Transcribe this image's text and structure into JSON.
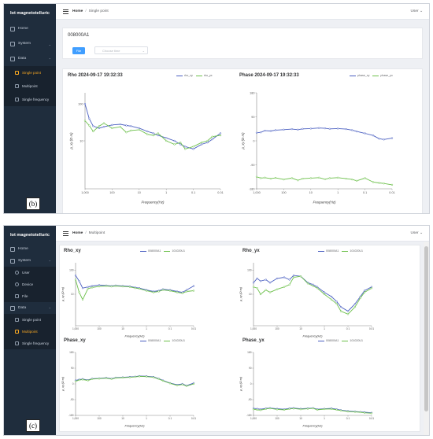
{
  "brand": "Iot magnetotelluric",
  "user_menu": "User",
  "fig_labels": {
    "b": "(b)",
    "c": "(c)"
  },
  "panel_b": {
    "sidebar": {
      "home": "Home",
      "system": "System",
      "data": "Data",
      "single_point": "Single point",
      "multipoint": "Multipoint",
      "single_frequency": "Single frequency"
    },
    "breadcrumb": {
      "home": "Home",
      "current": "Single point"
    },
    "station_id": "008000A1",
    "file_button": "File",
    "time_placeholder": "Choose time",
    "rho_title": "Rho 2024-09-17 19:32:33",
    "phase_title": "Phase 2024-09-17 19:32:33",
    "rho_legend": [
      "rho_xy",
      "rho_yx"
    ],
    "phase_legend": [
      "phase_xy",
      "phase_yx"
    ],
    "rho_ticks_y": [
      "100",
      "10"
    ],
    "phase_ticks_y": [
      "180",
      "90",
      "0",
      "-90",
      "-180"
    ],
    "x_ticks": [
      "1,000",
      "100",
      "10",
      "1",
      "0.1",
      "0.01"
    ],
    "rho_ylabel": "ρ_xy (Ω·m)",
    "phase_ylabel": "ρ_xy (Ω·m)",
    "xlabel": "Frequency(Hz)"
  },
  "panel_c": {
    "sidebar": {
      "home": "Home",
      "system": "System",
      "user": "User",
      "device": "Device",
      "file": "File",
      "data": "Data",
      "single_point": "Single point",
      "multipoint": "Multipoint",
      "single_frequency": "Single frequency"
    },
    "breadcrumb": {
      "home": "Home",
      "current": "Multipoint"
    },
    "titles": [
      "Rho_xy",
      "Rho_yx",
      "Phase_xy",
      "Phase_yx"
    ],
    "legend": [
      "008000A1",
      "101020U1"
    ],
    "x_ticks": [
      "1,000",
      "100",
      "10",
      "1",
      "0.1",
      "0.01"
    ],
    "rho_ticks_y": [
      "100",
      "10"
    ],
    "phase_ticks_y": [
      "180",
      "90",
      "0",
      "-90",
      "-180"
    ],
    "xlabel": "Frequency(Hz)",
    "ylabel": "ρ_xy (Ω·m)"
  },
  "colors": {
    "series_a": "#4a5fc1",
    "series_b": "#6cc04a",
    "accent": "#409eff",
    "sidebar_bg": "#1f2d3d",
    "active": "#f5a623"
  },
  "chart_data": [
    {
      "type": "line",
      "title": "Rho 2024-09-17 19:32:33",
      "xlabel": "Frequency(Hz)",
      "x_scale": "log-reversed",
      "xlim": [
        1000,
        0.01
      ],
      "y_scale": "log",
      "series": [
        {
          "name": "rho_xy",
          "x": [
            1000,
            700,
            500,
            300,
            200,
            100,
            50,
            30,
            20,
            10,
            5,
            3,
            2,
            1,
            0.5,
            0.3,
            0.2,
            0.1,
            0.05,
            0.03,
            0.02,
            0.01
          ],
          "y": [
            100,
            40,
            25,
            22,
            24,
            27,
            28,
            26,
            25,
            22,
            18,
            16,
            14,
            12,
            10,
            8,
            7,
            6,
            8,
            9,
            11,
            16
          ]
        },
        {
          "name": "rho_yx",
          "x": [
            1000,
            700,
            500,
            300,
            200,
            100,
            50,
            30,
            20,
            10,
            5,
            3,
            2,
            1,
            0.5,
            0.3,
            0.2,
            0.1,
            0.05,
            0.03,
            0.02,
            0.01
          ],
          "y": [
            35,
            26,
            18,
            25,
            30,
            22,
            24,
            17,
            19,
            20,
            15,
            14,
            16,
            10,
            8,
            9,
            6,
            7,
            9,
            10,
            13,
            14
          ]
        }
      ]
    },
    {
      "type": "line",
      "title": "Phase 2024-09-17 19:32:33",
      "xlabel": "Frequency(Hz)",
      "x_scale": "log-reversed",
      "xlim": [
        1000,
        0.01
      ],
      "ylim": [
        -180,
        180
      ],
      "series": [
        {
          "name": "phase_xy",
          "x": [
            1000,
            700,
            500,
            300,
            200,
            100,
            50,
            30,
            20,
            10,
            5,
            3,
            2,
            1,
            0.5,
            0.3,
            0.2,
            0.1,
            0.05,
            0.03,
            0.02,
            0.01
          ],
          "y": [
            30,
            32,
            38,
            37,
            40,
            42,
            44,
            42,
            45,
            46,
            48,
            47,
            45,
            46,
            44,
            40,
            35,
            28,
            20,
            8,
            5,
            10
          ]
        },
        {
          "name": "phase_yx",
          "x": [
            1000,
            700,
            500,
            300,
            200,
            100,
            50,
            30,
            20,
            10,
            5,
            3,
            2,
            1,
            0.5,
            0.3,
            0.2,
            0.1,
            0.05,
            0.03,
            0.02,
            0.01
          ],
          "y": [
            -135,
            -140,
            -138,
            -142,
            -139,
            -145,
            -140,
            -148,
            -142,
            -140,
            -138,
            -144,
            -140,
            -138,
            -142,
            -145,
            -150,
            -140,
            -155,
            -158,
            -160,
            -165
          ]
        }
      ]
    },
    {
      "type": "line",
      "title": "Rho_xy",
      "xlabel": "Frequency(Hz)",
      "x_scale": "log-reversed",
      "xlim": [
        1000,
        0.01
      ],
      "y_scale": "log",
      "series": [
        {
          "name": "008000A1",
          "x": [
            1000,
            700,
            500,
            300,
            200,
            100,
            50,
            30,
            20,
            10,
            5,
            3,
            2,
            1,
            0.5,
            0.3,
            0.2,
            0.1,
            0.05,
            0.03,
            0.02,
            0.01
          ],
          "y": [
            60,
            35,
            18,
            20,
            22,
            24,
            23,
            22,
            23,
            22,
            21,
            19,
            18,
            15,
            13,
            14,
            16,
            15,
            13,
            12,
            15,
            22
          ]
        },
        {
          "name": "101020U1",
          "x": [
            1000,
            700,
            500,
            300,
            200,
            100,
            50,
            30,
            20,
            10,
            5,
            3,
            2,
            1,
            0.5,
            0.3,
            0.2,
            0.1,
            0.05,
            0.03,
            0.02,
            0.01
          ],
          "y": [
            40,
            12,
            6,
            17,
            19,
            21,
            22,
            21,
            22,
            21,
            20,
            18,
            17,
            14,
            12,
            13,
            15,
            14,
            12,
            11,
            13,
            14
          ]
        }
      ]
    },
    {
      "type": "line",
      "title": "Rho_yx",
      "xlabel": "Frequency(Hz)",
      "x_scale": "log-reversed",
      "xlim": [
        1000,
        0.01
      ],
      "y_scale": "log",
      "series": [
        {
          "name": "008000A1",
          "x": [
            1000,
            700,
            500,
            300,
            200,
            100,
            50,
            30,
            20,
            10,
            5,
            3,
            2,
            1,
            0.5,
            0.3,
            0.2,
            0.1,
            0.05,
            0.03,
            0.02,
            0.01
          ],
          "y": [
            30,
            45,
            35,
            40,
            30,
            45,
            50,
            40,
            60,
            55,
            30,
            25,
            20,
            12,
            8,
            5,
            3,
            2,
            4,
            8,
            14,
            20
          ]
        },
        {
          "name": "101020U1",
          "x": [
            1000,
            700,
            500,
            300,
            200,
            100,
            50,
            30,
            20,
            10,
            5,
            3,
            2,
            1,
            0.5,
            0.3,
            0.2,
            0.1,
            0.05,
            0.03,
            0.02,
            0.01
          ],
          "y": [
            20,
            18,
            10,
            15,
            12,
            16,
            20,
            25,
            50,
            55,
            28,
            22,
            18,
            10,
            6,
            4,
            2,
            1.5,
            3,
            7,
            12,
            18
          ]
        }
      ]
    },
    {
      "type": "line",
      "title": "Phase_xy",
      "xlabel": "Frequency(Hz)",
      "x_scale": "log-reversed",
      "xlim": [
        1000,
        0.01
      ],
      "ylim": [
        -180,
        180
      ],
      "series": [
        {
          "name": "008000A1",
          "x": [
            1000,
            700,
            500,
            300,
            200,
            100,
            50,
            30,
            20,
            10,
            5,
            3,
            2,
            1,
            0.5,
            0.3,
            0.2,
            0.1,
            0.05,
            0.03,
            0.02,
            0.01
          ],
          "y": [
            20,
            25,
            28,
            22,
            30,
            32,
            35,
            30,
            36,
            38,
            40,
            42,
            45,
            44,
            40,
            30,
            20,
            5,
            -5,
            0,
            -10,
            5
          ]
        },
        {
          "name": "101020U1",
          "x": [
            1000,
            700,
            500,
            300,
            200,
            100,
            50,
            30,
            20,
            10,
            5,
            3,
            2,
            1,
            0.5,
            0.3,
            0.2,
            0.1,
            0.05,
            0.03,
            0.02,
            0.01
          ],
          "y": [
            15,
            22,
            25,
            20,
            28,
            30,
            33,
            28,
            34,
            36,
            38,
            40,
            43,
            42,
            38,
            28,
            18,
            3,
            -8,
            -3,
            -12,
            0
          ]
        }
      ]
    },
    {
      "type": "line",
      "title": "Phase_yx",
      "xlabel": "Frequency(Hz)",
      "x_scale": "log-reversed",
      "xlim": [
        1000,
        0.01
      ],
      "ylim": [
        -180,
        180
      ],
      "series": [
        {
          "name": "008000A1",
          "x": [
            1000,
            700,
            500,
            300,
            200,
            100,
            50,
            30,
            20,
            10,
            5,
            3,
            2,
            1,
            0.5,
            0.3,
            0.2,
            0.1,
            0.05,
            0.03,
            0.02,
            0.01
          ],
          "y": [
            -140,
            -142,
            -145,
            -140,
            -138,
            -142,
            -145,
            -140,
            -138,
            -142,
            -140,
            -138,
            -145,
            -142,
            -140,
            -145,
            -150,
            -155,
            -158,
            -160,
            -162,
            -165
          ]
        },
        {
          "name": "101020U1",
          "x": [
            1000,
            700,
            500,
            300,
            200,
            100,
            50,
            30,
            20,
            10,
            5,
            3,
            2,
            1,
            0.5,
            0.3,
            0.2,
            0.1,
            0.05,
            0.03,
            0.02,
            0.01
          ],
          "y": [
            -145,
            -148,
            -150,
            -143,
            -140,
            -146,
            -148,
            -143,
            -141,
            -145,
            -142,
            -140,
            -148,
            -144,
            -143,
            -148,
            -152,
            -158,
            -160,
            -162,
            -165,
            -168
          ]
        }
      ]
    }
  ]
}
